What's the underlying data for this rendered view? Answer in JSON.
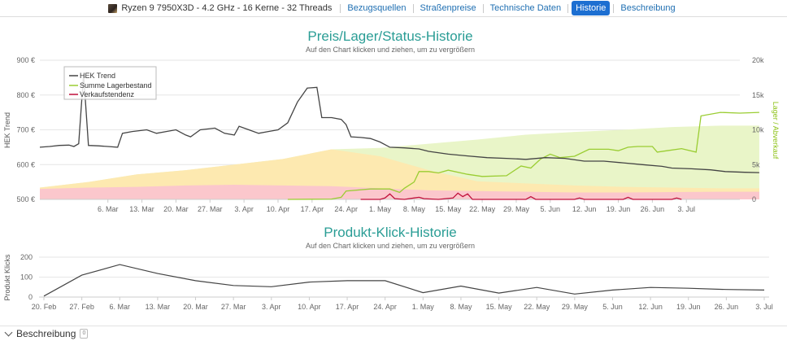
{
  "nav": {
    "product": "Ryzen 9 7950X3D - 4.2 GHz - 16 Kerne - 32 Threads",
    "product_icon": "cpu-chip-icon",
    "tabs": [
      "Bezugsquellen",
      "Straßenpreise",
      "Technische Daten",
      "Historie",
      "Beschreibung"
    ],
    "active_tab": "Historie"
  },
  "chart_data": [
    {
      "type": "line",
      "title": "Preis/Lager/Status-Historie",
      "subtitle": "Auf den Chart klicken und ziehen, um zu vergrößern",
      "ylabel": "HEK Trend",
      "y2label": "Lager / Abverkauf",
      "ylim": [
        500,
        900
      ],
      "y2lim": [
        0,
        20000
      ],
      "yticks": [
        "900 €",
        "800 €",
        "700 €",
        "600 €",
        "500 €"
      ],
      "y2ticks": [
        "20k",
        "15k",
        "10k",
        "5k",
        "0"
      ],
      "xlim": [
        0,
        144
      ],
      "xticks": [
        {
          "label": "6. Mar",
          "x": 14
        },
        {
          "label": "13. Mar",
          "x": 21
        },
        {
          "label": "20. Mar",
          "x": 28
        },
        {
          "label": "27. Mar",
          "x": 35
        },
        {
          "label": "3. Apr",
          "x": 42
        },
        {
          "label": "10. Apr",
          "x": 49
        },
        {
          "label": "17. Apr",
          "x": 56
        },
        {
          "label": "24. Apr",
          "x": 63
        },
        {
          "label": "1. May",
          "x": 70
        },
        {
          "label": "8. May",
          "x": 77
        },
        {
          "label": "15. May",
          "x": 84
        },
        {
          "label": "22. May",
          "x": 91
        },
        {
          "label": "29. May",
          "x": 98
        },
        {
          "label": "5. Jun",
          "x": 105
        },
        {
          "label": "12. Jun",
          "x": 112
        },
        {
          "label": "19. Jun",
          "x": 119
        },
        {
          "label": "26. Jun",
          "x": 126
        },
        {
          "label": "3. Jul",
          "x": 133
        }
      ],
      "legend": [
        "HEK Trend",
        "Summe Lagerbestand",
        "Verkaufstendenz"
      ],
      "legend_position": "top-left",
      "colors": {
        "hek": "#444444",
        "stock": "#9acd32",
        "tendency": "#c0103b",
        "band_green": "#e9f5c8",
        "band_yellow": "#fde9b0",
        "band_red": "#fbc7cc",
        "title": "#2a9d95"
      },
      "series": [
        {
          "name": "HEK Trend",
          "axis": "left",
          "points": [
            [
              0,
              650
            ],
            [
              2,
              652
            ],
            [
              4,
              655
            ],
            [
              6,
              656
            ],
            [
              7,
              652
            ],
            [
              8,
              660
            ],
            [
              9,
              860
            ],
            [
              10,
              655
            ],
            [
              12,
              654
            ],
            [
              14,
              652
            ],
            [
              16,
              650
            ],
            [
              17,
              690
            ],
            [
              19,
              695
            ],
            [
              22,
              700
            ],
            [
              24,
              690
            ],
            [
              26,
              695
            ],
            [
              28,
              700
            ],
            [
              30,
              685
            ],
            [
              31,
              680
            ],
            [
              33,
              700
            ],
            [
              36,
              705
            ],
            [
              38,
              690
            ],
            [
              40,
              685
            ],
            [
              41,
              710
            ],
            [
              43,
              700
            ],
            [
              45,
              690
            ],
            [
              47,
              695
            ],
            [
              49,
              700
            ],
            [
              51,
              720
            ],
            [
              53,
              780
            ],
            [
              55,
              820
            ],
            [
              57,
              822
            ],
            [
              58,
              735
            ],
            [
              60,
              735
            ],
            [
              62,
              730
            ],
            [
              63,
              715
            ],
            [
              64,
              680
            ],
            [
              66,
              678
            ],
            [
              68,
              675
            ],
            [
              70,
              665
            ],
            [
              72,
              650
            ],
            [
              75,
              648
            ],
            [
              78,
              645
            ],
            [
              80,
              638
            ],
            [
              84,
              630
            ],
            [
              88,
              625
            ],
            [
              92,
              620
            ],
            [
              96,
              618
            ],
            [
              100,
              615
            ],
            [
              104,
              620
            ],
            [
              108,
              618
            ],
            [
              112,
              610
            ],
            [
              116,
              610
            ],
            [
              120,
              605
            ],
            [
              124,
              600
            ],
            [
              128,
              595
            ],
            [
              130,
              590
            ],
            [
              134,
              588
            ],
            [
              138,
              585
            ],
            [
              141,
              580
            ],
            [
              145,
              578
            ],
            [
              148,
              577
            ]
          ]
        },
        {
          "name": "Summe Lagerbestand",
          "axis": "right",
          "points": [
            [
              51,
              0
            ],
            [
              60,
              50
            ],
            [
              62,
              300
            ],
            [
              63,
              1200
            ],
            [
              68,
              1500
            ],
            [
              72,
              1500
            ],
            [
              74,
              1000
            ],
            [
              75,
              1600
            ],
            [
              77,
              2500
            ],
            [
              78,
              4000
            ],
            [
              80,
              4000
            ],
            [
              82,
              3800
            ],
            [
              84,
              4200
            ],
            [
              88,
              3600
            ],
            [
              91,
              3300
            ],
            [
              96,
              3400
            ],
            [
              99,
              4800
            ],
            [
              101,
              4500
            ],
            [
              103,
              5800
            ],
            [
              105,
              6500
            ],
            [
              107,
              6000
            ],
            [
              110,
              6200
            ],
            [
              113,
              7200
            ],
            [
              117,
              7200
            ],
            [
              119,
              7000
            ],
            [
              121,
              7500
            ],
            [
              123,
              7600
            ],
            [
              126,
              7600
            ],
            [
              127,
              6800
            ],
            [
              129,
              7000
            ],
            [
              132,
              7300
            ],
            [
              135,
              6800
            ],
            [
              136,
              12000
            ],
            [
              140,
              12500
            ],
            [
              144,
              12400
            ],
            [
              148,
              12500
            ]
          ]
        },
        {
          "name": "Verkaufstendenz",
          "axis": "right",
          "points": [
            [
              66,
              0
            ],
            [
              70,
              0
            ],
            [
              71,
              200
            ],
            [
              72,
              800
            ],
            [
              73,
              100
            ],
            [
              75,
              0
            ],
            [
              78,
              300
            ],
            [
              79,
              100
            ],
            [
              82,
              0
            ],
            [
              85,
              200
            ],
            [
              86,
              900
            ],
            [
              87,
              400
            ],
            [
              88,
              800
            ],
            [
              89,
              0
            ],
            [
              100,
              0
            ],
            [
              101,
              400
            ],
            [
              102,
              0
            ],
            [
              110,
              0
            ],
            [
              111,
              200
            ],
            [
              112,
              0
            ],
            [
              120,
              0
            ],
            [
              121,
              300
            ],
            [
              122,
              0
            ],
            [
              130,
              0
            ],
            [
              131,
              200
            ],
            [
              132,
              0
            ]
          ]
        }
      ]
    },
    {
      "type": "line",
      "title": "Produkt-Klick-Historie",
      "subtitle": "Auf den Chart klicken und ziehen, um zu vergrößern",
      "ylabel": "Produkt Klicks",
      "ylim": [
        0,
        200
      ],
      "yticks": [
        "200",
        "100",
        "0"
      ],
      "xticks": [
        "20. Feb",
        "27. Feb",
        "6. Mar",
        "13. Mar",
        "20. Mar",
        "27. Mar",
        "3. Apr",
        "10. Apr",
        "17. Apr",
        "24. Apr",
        "1. May",
        "8. May",
        "15. May",
        "22. May",
        "29. May",
        "5. Jun",
        "12. Jun",
        "19. Jun",
        "26. Jun",
        "3. Jul"
      ],
      "series": [
        {
          "name": "Produkt Klicks",
          "points": [
            [
              0,
              5
            ],
            [
              1,
              110
            ],
            [
              2,
              163
            ],
            [
              3,
              118
            ],
            [
              4,
              82
            ],
            [
              5,
              58
            ],
            [
              6,
              52
            ],
            [
              7,
              75
            ],
            [
              8,
              82
            ],
            [
              9,
              82
            ],
            [
              10,
              22
            ],
            [
              11,
              55
            ],
            [
              12,
              20
            ],
            [
              13,
              48
            ],
            [
              14,
              15
            ],
            [
              15,
              35
            ],
            [
              16,
              48
            ],
            [
              17,
              44
            ],
            [
              18,
              38
            ],
            [
              19,
              35
            ]
          ]
        }
      ]
    }
  ],
  "bottom": {
    "label": "Beschreibung",
    "badge": "0"
  }
}
